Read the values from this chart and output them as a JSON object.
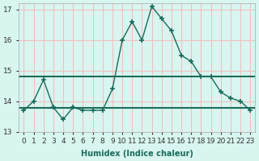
{
  "x": [
    0,
    1,
    2,
    3,
    4,
    5,
    6,
    7,
    8,
    9,
    10,
    11,
    12,
    13,
    14,
    15,
    16,
    17,
    18,
    19,
    20,
    21,
    22,
    23
  ],
  "y": [
    13.7,
    14.0,
    14.7,
    13.8,
    13.4,
    13.8,
    13.7,
    13.7,
    13.7,
    14.4,
    16.0,
    16.6,
    16.0,
    17.1,
    16.7,
    16.3,
    15.5,
    15.3,
    14.8,
    14.8,
    14.3,
    14.1,
    14.0,
    13.7
  ],
  "mean_line1": 14.8,
  "mean_line2": 13.77,
  "line_color": "#1a6b5a",
  "bg_color": "#d8f5f0",
  "grid_color": "#f0c0c0",
  "xlabel": "Humidex (Indice chaleur)",
  "ylim": [
    13.0,
    17.2
  ],
  "xlim": [
    -0.5,
    23.5
  ],
  "yticks": [
    13,
    14,
    15,
    16,
    17
  ],
  "xticks": [
    0,
    1,
    2,
    3,
    4,
    5,
    6,
    7,
    8,
    9,
    10,
    11,
    12,
    13,
    14,
    15,
    16,
    17,
    18,
    19,
    20,
    21,
    22,
    23
  ],
  "xtick_labels": [
    "0",
    "1",
    "2",
    "3",
    "4",
    "5",
    "6",
    "7",
    "8",
    "9",
    "10",
    "11",
    "12",
    "13",
    "14",
    "15",
    "16",
    "17",
    "18",
    "19",
    "20",
    "21",
    "22",
    "23"
  ],
  "title_fontsize": 7,
  "axis_fontsize": 7,
  "tick_fontsize": 6.5
}
